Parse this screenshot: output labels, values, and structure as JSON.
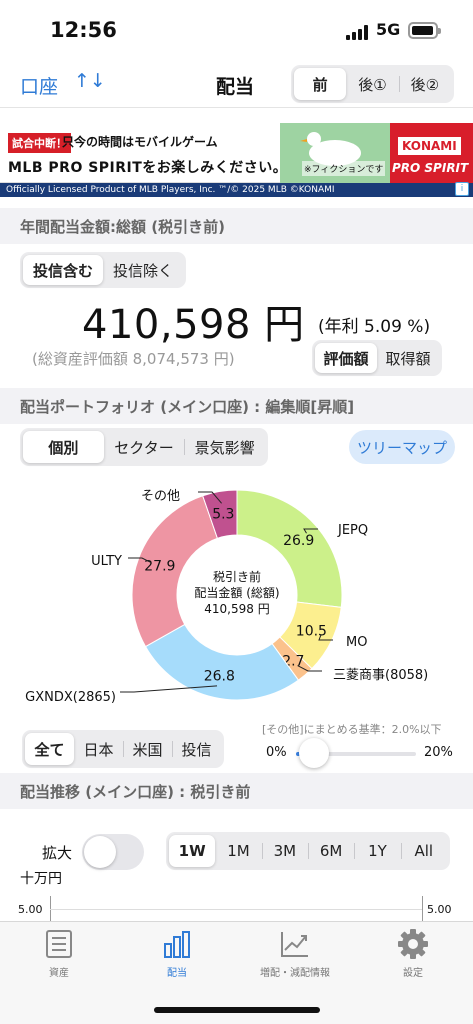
{
  "status_bar": {
    "time": "12:56",
    "network": "5G"
  },
  "nav": {
    "account": "口座",
    "sort_icon": "↑↓",
    "title": "配当",
    "periods": [
      "前",
      "後①",
      "後②"
    ],
    "active_period": 0
  },
  "ad": {
    "badge": "試合中断！",
    "line1": "只今の時間はモバイルゲーム",
    "line2": "MLB PRO SPIRITをお楽しみください。",
    "fiction": "※フィクションです",
    "brand": "KONAMI",
    "game": "PRO SPIRIT",
    "footer": "Officially Licensed Product of MLB Players, Inc.   ™/© 2025 MLB   ©KONAMI"
  },
  "annual": {
    "header": "年間配当金額:総額 (税引き前)",
    "filter": [
      "投信含む",
      "投信除く"
    ],
    "active_filter": 0,
    "amount": "410,598 円",
    "yield": "(年利 5.09 %)",
    "total_assets": "(総資産評価額 8,074,573 円)",
    "basis": [
      "評価額",
      "取得額"
    ],
    "active_basis": 0
  },
  "portfolio": {
    "header": "配当ポートフォリオ (メイン口座) : 編集順[昇順]",
    "view": [
      "個別",
      "セクター",
      "景気影響"
    ],
    "active_view": 0,
    "treemap": "ツリーマップ",
    "center_line1": "税引き前",
    "center_line2": "配当金額 (総額)",
    "center_line3": "410,598 円",
    "threshold_label": "[その他]にまとめる基準：2.0%以下",
    "slider_min": "0%",
    "slider_max": "20%",
    "slider_fraction": 0.1,
    "market": [
      "全て",
      "日本",
      "米国",
      "投信"
    ],
    "active_market": 0
  },
  "chart_data": {
    "type": "pie",
    "slices": [
      {
        "name": "JEPQ",
        "value": 26.9,
        "color": "#ccf08a"
      },
      {
        "name": "MO",
        "value": 10.5,
        "color": "#fcef8f"
      },
      {
        "name": "三菱商事(8058)",
        "value": 2.7,
        "color": "#fbc28c"
      },
      {
        "name": "GXNDX(2865)",
        "value": 26.8,
        "color": "#a6dcfb"
      },
      {
        "name": "ULTY",
        "value": 27.9,
        "color": "#ee95a3"
      },
      {
        "name": "その他",
        "value": 5.3,
        "color": "#c0518f"
      }
    ]
  },
  "trend": {
    "header": "配当推移 (メイン口座) : 税引き前",
    "zoom_label": "拡大",
    "ranges": [
      "1W",
      "1M",
      "3M",
      "6M",
      "1Y",
      "All"
    ],
    "active_range": 0,
    "unit": "十万円",
    "y_left": "5.00",
    "y_right": "5.00"
  },
  "tabs": [
    {
      "label": "資産",
      "icon": "document-list-icon"
    },
    {
      "label": "配当",
      "icon": "bar-chart-icon"
    },
    {
      "label": "増配・減配情報",
      "icon": "line-chart-icon"
    },
    {
      "label": "設定",
      "icon": "gear-icon"
    }
  ],
  "active_tab": 1
}
